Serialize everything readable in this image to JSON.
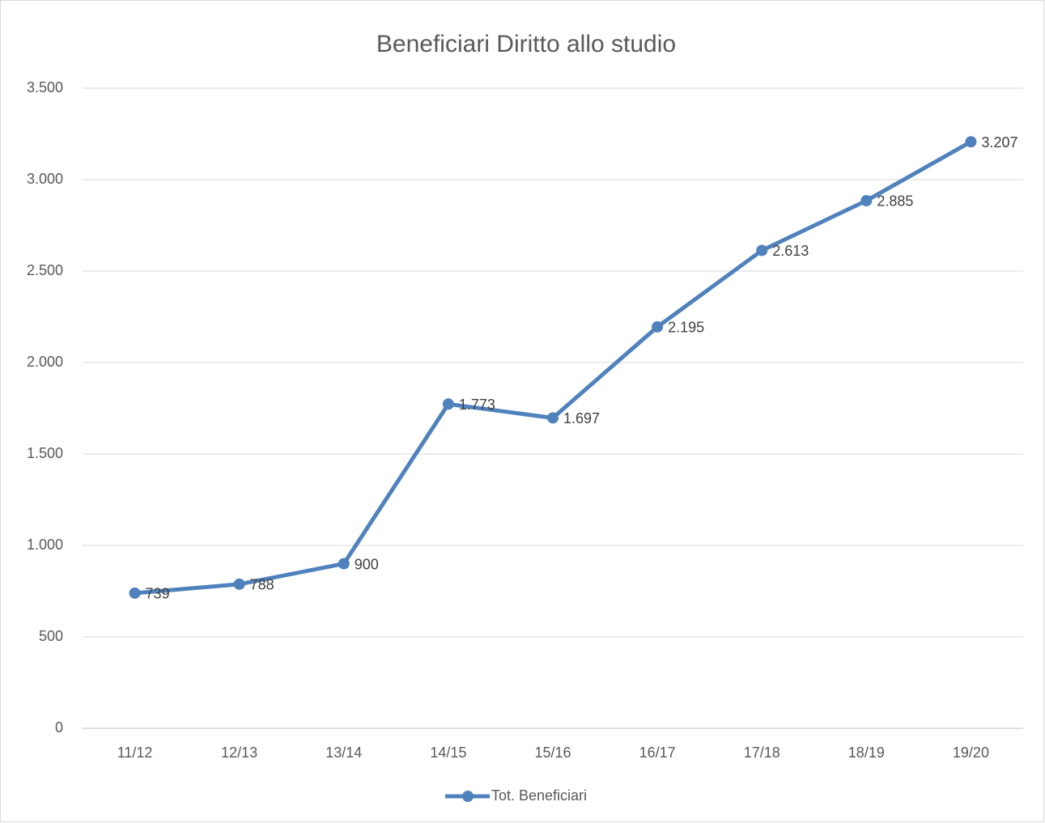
{
  "chart_data": {
    "type": "line",
    "title": "Beneficiari Diritto allo studio",
    "categories": [
      "11/12",
      "12/13",
      "13/14",
      "14/15",
      "15/16",
      "16/17",
      "17/18",
      "18/19",
      "19/20"
    ],
    "series": [
      {
        "name": "Tot. Beneficiari",
        "color": "#4f81bd",
        "values": [
          739,
          788,
          900,
          1773,
          1697,
          2195,
          2613,
          2885,
          3207
        ],
        "value_labels": [
          "739",
          "788",
          "900",
          "1.773",
          "1.697",
          "2.195",
          "2.613",
          "2.885",
          "3.207"
        ]
      }
    ],
    "ylim": [
      0,
      3500
    ],
    "yticks": [
      0,
      500,
      {
        "value": 1000,
        "label": "1.000"
      },
      {
        "value": 1500,
        "label": "1.500"
      },
      {
        "value": 2000,
        "label": "2.000"
      },
      {
        "value": 2500,
        "label": "2.500"
      },
      {
        "value": 3000,
        "label": "3.000"
      },
      {
        "value": 3500,
        "label": "3.500"
      }
    ],
    "grid": true,
    "legend": "bottom"
  }
}
